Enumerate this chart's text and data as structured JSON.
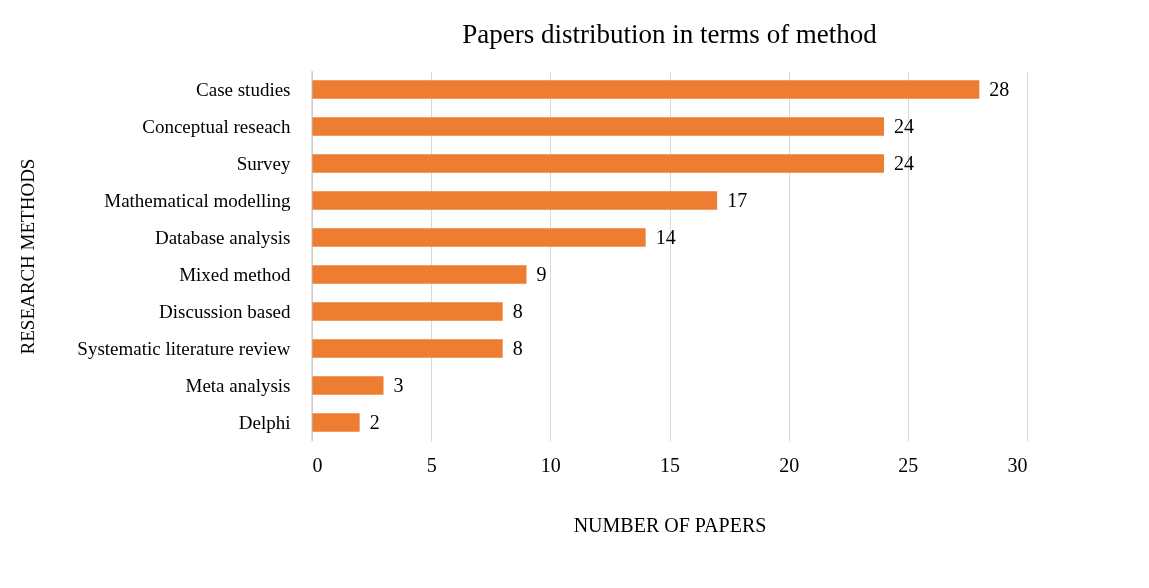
{
  "chart_data": {
    "type": "bar",
    "orientation": "horizontal",
    "title": "Papers distribution in terms of method",
    "xlabel": "NUMBER OF PAPERS",
    "ylabel": "RESEARCH METHODS",
    "categories": [
      "Case studies",
      "Conceptual reseach",
      "Survey",
      "Mathematical modelling",
      "Database analysis",
      "Mixed method",
      "Discussion based",
      "Systematic literature review",
      "Meta analysis",
      "Delphi"
    ],
    "values": [
      28,
      24,
      24,
      17,
      14,
      9,
      8,
      8,
      3,
      2
    ],
    "color": "#ed7d31",
    "xlim": [
      0,
      30
    ],
    "xticks": [
      0,
      5,
      10,
      15,
      20,
      25,
      30
    ],
    "grid": "x",
    "data_labels": true
  }
}
